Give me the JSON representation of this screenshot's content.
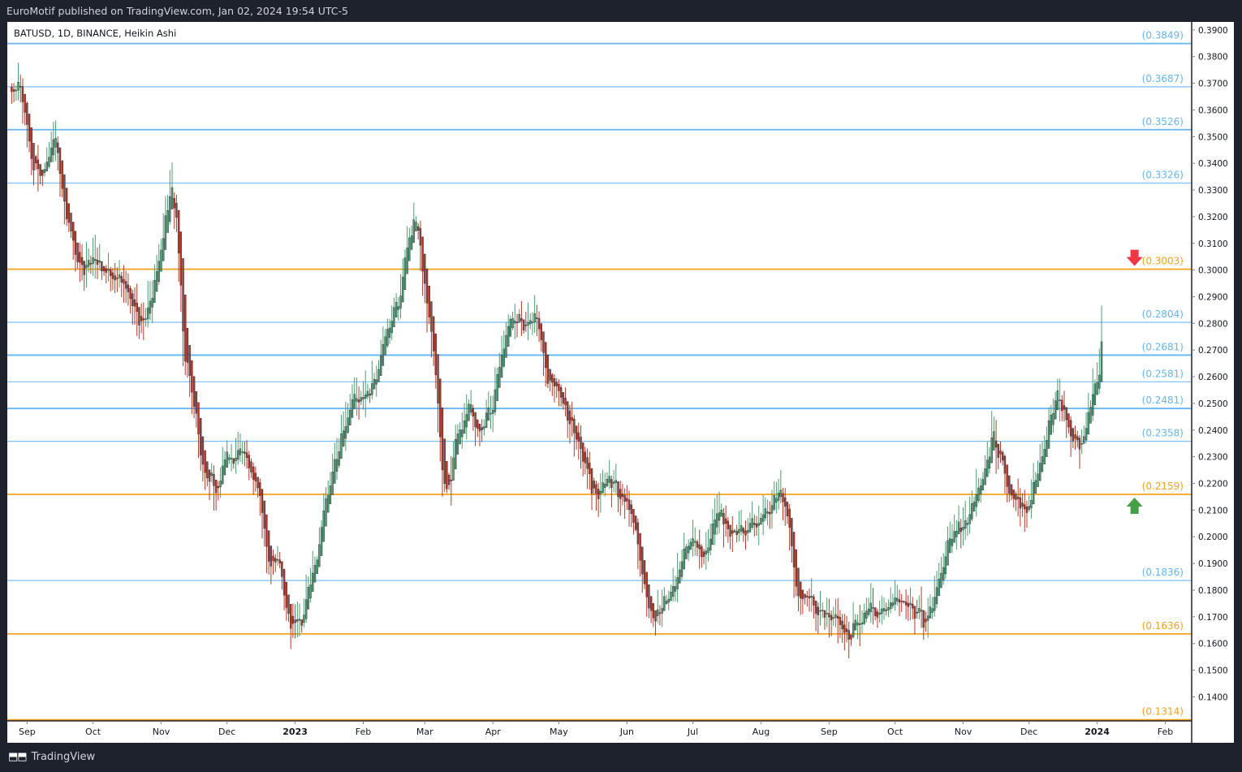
{
  "header": {
    "caption": "EuroMotif published on TradingView.com, Jan 02, 2024 19:54 UTC-5"
  },
  "chart": {
    "symbol_label": "BATUSD, 1D, BINANCE, Heikin Ashi"
  },
  "footer": {
    "brand": "TradingView",
    "logo_icon": "tradingview-logo-icon"
  },
  "colors": {
    "background": "#ffffff",
    "frame": "#1e222d",
    "bull_candle": "#4e9d70",
    "bear_candle": "#b23a2a",
    "blue_level": "#64b5f6",
    "orange_level": "#f7a21b",
    "sell_arrow": "#f23645",
    "buy_arrow": "#43a047"
  },
  "chart_data": {
    "type": "candlestick",
    "title": "BATUSD, 1D, BINANCE, Heikin Ashi",
    "ylim": [
      0.131,
      0.393
    ],
    "y_ticks": [
      "0.3900",
      "0.3800",
      "0.3700",
      "0.3600",
      "0.3500",
      "0.3400",
      "0.3300",
      "0.3200",
      "0.3100",
      "0.3000",
      "0.2900",
      "0.2800",
      "0.2700",
      "0.2600",
      "0.2500",
      "0.2400",
      "0.2300",
      "0.2200",
      "0.2100",
      "0.2000",
      "0.1900",
      "0.1800",
      "0.1700",
      "0.1600",
      "0.1500",
      "0.1400"
    ],
    "x_ticks": [
      {
        "label": "Sep",
        "date": "2022-09-01",
        "bold": false
      },
      {
        "label": "Oct",
        "date": "2022-10-01",
        "bold": false
      },
      {
        "label": "Nov",
        "date": "2022-11-01",
        "bold": false
      },
      {
        "label": "Dec",
        "date": "2022-12-01",
        "bold": false
      },
      {
        "label": "2023",
        "date": "2023-01-01",
        "bold": true
      },
      {
        "label": "Feb",
        "date": "2023-02-01",
        "bold": false
      },
      {
        "label": "Mar",
        "date": "2023-03-01",
        "bold": false
      },
      {
        "label": "Apr",
        "date": "2023-04-01",
        "bold": false
      },
      {
        "label": "May",
        "date": "2023-05-01",
        "bold": false
      },
      {
        "label": "Jun",
        "date": "2023-06-01",
        "bold": false
      },
      {
        "label": "Jul",
        "date": "2023-07-01",
        "bold": false
      },
      {
        "label": "Aug",
        "date": "2023-08-01",
        "bold": false
      },
      {
        "label": "Sep",
        "date": "2023-09-01",
        "bold": false
      },
      {
        "label": "Oct",
        "date": "2023-10-01",
        "bold": false
      },
      {
        "label": "Nov",
        "date": "2023-11-01",
        "bold": false
      },
      {
        "label": "Dec",
        "date": "2023-12-01",
        "bold": false
      },
      {
        "label": "2024",
        "date": "2024-01-01",
        "bold": true
      },
      {
        "label": "Feb",
        "date": "2024-02-01",
        "bold": false
      }
    ],
    "levels": [
      {
        "value": 0.3849,
        "label": "(0.3849)",
        "color": "blue",
        "weight": "strong"
      },
      {
        "value": 0.3687,
        "label": "(0.3687)",
        "color": "blue",
        "weight": "light"
      },
      {
        "value": 0.3526,
        "label": "(0.3526)",
        "color": "blue",
        "weight": "strong"
      },
      {
        "value": 0.3326,
        "label": "(0.3326)",
        "color": "blue",
        "weight": "light"
      },
      {
        "value": 0.3003,
        "label": "(0.3003)",
        "color": "orange",
        "weight": "strong"
      },
      {
        "value": 0.2804,
        "label": "(0.2804)",
        "color": "blue",
        "weight": "light"
      },
      {
        "value": 0.2681,
        "label": "(0.2681)",
        "color": "blue",
        "weight": "strong"
      },
      {
        "value": 0.2581,
        "label": "(0.2581)",
        "color": "blue",
        "weight": "light"
      },
      {
        "value": 0.2481,
        "label": "(0.2481)",
        "color": "blue",
        "weight": "strong"
      },
      {
        "value": 0.2358,
        "label": "(0.2358)",
        "color": "blue",
        "weight": "light"
      },
      {
        "value": 0.2159,
        "label": "(0.2159)",
        "color": "orange",
        "weight": "strong"
      },
      {
        "value": 0.1836,
        "label": "(0.1836)",
        "color": "blue",
        "weight": "light"
      },
      {
        "value": 0.1636,
        "label": "(0.1636)",
        "color": "orange",
        "weight": "strong"
      },
      {
        "value": 0.1314,
        "label": "(0.1314)",
        "color": "orange",
        "weight": "strong"
      }
    ],
    "markers": [
      {
        "type": "sell-arrow",
        "date": "2024-01-18",
        "value": 0.3003,
        "color": "red"
      },
      {
        "type": "buy-arrow",
        "date": "2024-01-18",
        "value": 0.2159,
        "color": "green"
      }
    ],
    "price_path": [
      [
        "2022-08-24",
        0.365
      ],
      [
        "2022-08-28",
        0.371
      ],
      [
        "2022-09-03",
        0.34
      ],
      [
        "2022-09-08",
        0.336
      ],
      [
        "2022-09-13",
        0.353
      ],
      [
        "2022-09-18",
        0.32
      ],
      [
        "2022-09-24",
        0.3
      ],
      [
        "2022-09-30",
        0.304
      ],
      [
        "2022-10-06",
        0.3
      ],
      [
        "2022-10-12",
        0.298
      ],
      [
        "2022-10-16",
        0.29
      ],
      [
        "2022-10-24",
        0.28
      ],
      [
        "2022-10-29",
        0.295
      ],
      [
        "2022-11-05",
        0.33
      ],
      [
        "2022-11-08",
        0.318
      ],
      [
        "2022-11-11",
        0.27
      ],
      [
        "2022-11-15",
        0.25
      ],
      [
        "2022-11-20",
        0.225
      ],
      [
        "2022-11-25",
        0.218
      ],
      [
        "2022-11-30",
        0.228
      ],
      [
        "2022-12-06",
        0.232
      ],
      [
        "2022-12-12",
        0.224
      ],
      [
        "2022-12-16",
        0.217
      ],
      [
        "2022-12-19",
        0.19
      ],
      [
        "2022-12-25",
        0.187
      ],
      [
        "2022-12-30",
        0.165
      ],
      [
        "2023-01-04",
        0.17
      ],
      [
        "2023-01-09",
        0.185
      ],
      [
        "2023-01-14",
        0.212
      ],
      [
        "2023-01-20",
        0.232
      ],
      [
        "2023-01-27",
        0.25
      ],
      [
        "2023-02-02",
        0.252
      ],
      [
        "2023-02-07",
        0.262
      ],
      [
        "2023-02-12",
        0.278
      ],
      [
        "2023-02-17",
        0.292
      ],
      [
        "2023-02-21",
        0.31
      ],
      [
        "2023-02-24",
        0.322
      ],
      [
        "2023-02-28",
        0.298
      ],
      [
        "2023-03-05",
        0.265
      ],
      [
        "2023-03-09",
        0.22
      ],
      [
        "2023-03-12",
        0.22
      ],
      [
        "2023-03-15",
        0.24
      ],
      [
        "2023-03-20",
        0.248
      ],
      [
        "2023-03-25",
        0.24
      ],
      [
        "2023-03-31",
        0.25
      ],
      [
        "2023-04-05",
        0.27
      ],
      [
        "2023-04-09",
        0.285
      ],
      [
        "2023-04-14",
        0.28
      ],
      [
        "2023-04-20",
        0.283
      ],
      [
        "2023-04-25",
        0.262
      ],
      [
        "2023-05-01",
        0.253
      ],
      [
        "2023-05-06",
        0.243
      ],
      [
        "2023-05-11",
        0.232
      ],
      [
        "2023-05-17",
        0.215
      ],
      [
        "2023-05-22",
        0.22
      ],
      [
        "2023-05-27",
        0.22
      ],
      [
        "2023-06-01",
        0.212
      ],
      [
        "2023-06-06",
        0.195
      ],
      [
        "2023-06-10",
        0.175
      ],
      [
        "2023-06-14",
        0.17
      ],
      [
        "2023-06-20",
        0.178
      ],
      [
        "2023-06-25",
        0.19
      ],
      [
        "2023-07-01",
        0.2
      ],
      [
        "2023-07-06",
        0.192
      ],
      [
        "2023-07-12",
        0.21
      ],
      [
        "2023-07-17",
        0.203
      ],
      [
        "2023-07-24",
        0.201
      ],
      [
        "2023-07-30",
        0.205
      ],
      [
        "2023-08-05",
        0.212
      ],
      [
        "2023-08-09",
        0.218
      ],
      [
        "2023-08-13",
        0.21
      ],
      [
        "2023-08-17",
        0.18
      ],
      [
        "2023-08-24",
        0.175
      ],
      [
        "2023-08-29",
        0.172
      ],
      [
        "2023-09-04",
        0.17
      ],
      [
        "2023-09-10",
        0.165
      ],
      [
        "2023-09-15",
        0.168
      ],
      [
        "2023-09-21",
        0.173
      ],
      [
        "2023-09-27",
        0.172
      ],
      [
        "2023-10-03",
        0.18
      ],
      [
        "2023-10-08",
        0.175
      ],
      [
        "2023-10-14",
        0.17
      ],
      [
        "2023-10-19",
        0.178
      ],
      [
        "2023-10-24",
        0.195
      ],
      [
        "2023-10-29",
        0.203
      ],
      [
        "2023-11-04",
        0.21
      ],
      [
        "2023-11-10",
        0.222
      ],
      [
        "2023-11-14",
        0.238
      ],
      [
        "2023-11-19",
        0.225
      ],
      [
        "2023-11-25",
        0.212
      ],
      [
        "2023-11-30",
        0.21
      ],
      [
        "2023-12-05",
        0.225
      ],
      [
        "2023-12-10",
        0.245
      ],
      [
        "2023-12-14",
        0.252
      ],
      [
        "2023-12-19",
        0.24
      ],
      [
        "2023-12-24",
        0.23
      ],
      [
        "2023-12-29",
        0.252
      ],
      [
        "2024-01-02",
        0.26
      ],
      [
        "2024-01-03",
        0.28
      ]
    ]
  }
}
